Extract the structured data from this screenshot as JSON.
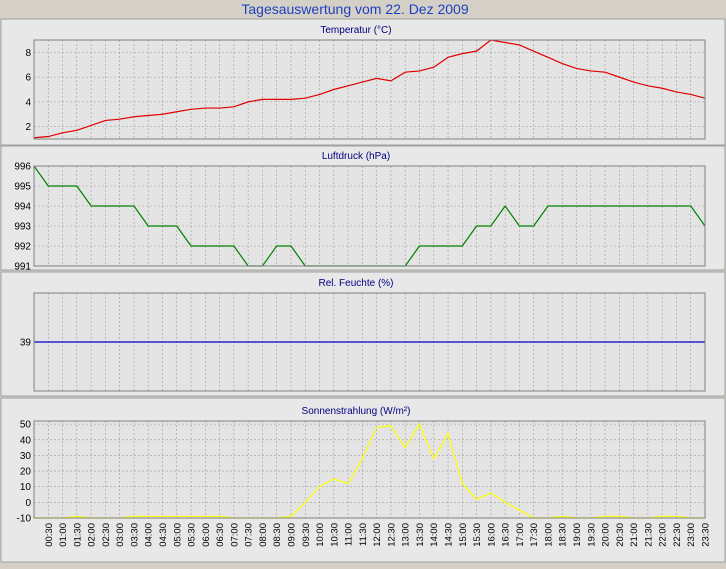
{
  "page_title": "Tagesauswertung vom 22. Dez 2009",
  "colors": {
    "background": "#d4d0c8",
    "title": "#1f3fbf",
    "panel": "#e8e8e8",
    "plot": "#e4e4e4",
    "grid": "#9a9a9a"
  },
  "time_labels": [
    "00:30",
    "01:00",
    "01:30",
    "02:00",
    "02:30",
    "03:00",
    "03:30",
    "04:00",
    "04:30",
    "05:00",
    "05:30",
    "06:00",
    "06:30",
    "07:00",
    "07:30",
    "08:00",
    "08:30",
    "09:00",
    "09:30",
    "10:00",
    "10:30",
    "11:00",
    "11:30",
    "12:00",
    "12:30",
    "13:00",
    "13:30",
    "14:00",
    "14:30",
    "15:00",
    "15:30",
    "16:00",
    "16:30",
    "17:00",
    "17:30",
    "18:00",
    "18:30",
    "19:00",
    "19:30",
    "20:00",
    "20:30",
    "21:00",
    "21:30",
    "22:00",
    "22:30",
    "23:00",
    "23:30"
  ],
  "chart_data": [
    {
      "type": "line",
      "title": "Temperatur (°C)",
      "ylim": [
        1,
        9
      ],
      "yticks": [
        2,
        4,
        6,
        8
      ],
      "grid": true,
      "color": "#e00000",
      "x": [
        0,
        0.5,
        1,
        1.5,
        2,
        2.5,
        3,
        3.5,
        4,
        4.5,
        5,
        5.5,
        6,
        6.5,
        7,
        7.5,
        8,
        8.5,
        9,
        9.5,
        10,
        10.5,
        11,
        11.5,
        12,
        12.5,
        13,
        13.5,
        14,
        14.5,
        15,
        15.5,
        16,
        16.5,
        17,
        17.5,
        18,
        18.5,
        19,
        19.5,
        20,
        20.5,
        21,
        21.5,
        22,
        22.5,
        23,
        23.5
      ],
      "values": [
        1.1,
        1.2,
        1.5,
        1.7,
        2.1,
        2.5,
        2.6,
        2.8,
        2.9,
        3.0,
        3.2,
        3.4,
        3.5,
        3.5,
        3.6,
        4.0,
        4.2,
        4.2,
        4.2,
        4.3,
        4.6,
        5.0,
        5.3,
        5.6,
        5.9,
        5.7,
        6.4,
        6.5,
        6.8,
        7.6,
        7.9,
        8.1,
        9.0,
        8.8,
        8.6,
        8.1,
        7.6,
        7.1,
        6.7,
        6.5,
        6.4,
        6.0,
        5.6,
        5.3,
        5.1,
        4.8,
        4.6,
        4.3
      ]
    },
    {
      "type": "line",
      "title": "Luftdruck (hPa)",
      "ylim": [
        991,
        996
      ],
      "yticks": [
        991,
        992,
        993,
        994,
        995,
        996
      ],
      "grid": true,
      "color": "#008000",
      "x": [
        0,
        0.5,
        1,
        1.5,
        2,
        2.5,
        3,
        3.5,
        4,
        4.5,
        5,
        5.5,
        6,
        6.5,
        7,
        7.5,
        8,
        8.5,
        9,
        9.5,
        10,
        10.5,
        11,
        11.5,
        12,
        12.5,
        13,
        13.5,
        14,
        14.5,
        15,
        15.5,
        16,
        16.5,
        17,
        17.5,
        18,
        18.5,
        19,
        19.5,
        20,
        20.5,
        21,
        21.5,
        22,
        22.5,
        23,
        23.5
      ],
      "values": [
        996,
        995,
        995,
        995,
        994,
        994,
        994,
        994,
        993,
        993,
        993,
        992,
        992,
        992,
        992,
        991,
        991,
        992,
        992,
        991,
        991,
        991,
        991,
        991,
        991,
        991,
        991,
        992,
        992,
        992,
        992,
        993,
        993,
        994,
        993,
        993,
        994,
        994,
        994,
        994,
        994,
        994,
        994,
        994,
        994,
        994,
        994,
        993
      ]
    },
    {
      "type": "line",
      "title": "Rel. Feuchte (%)",
      "ylim": [
        35,
        43
      ],
      "yticks": [
        39
      ],
      "grid": true,
      "color": "#0000cc",
      "x": [
        0,
        23.5
      ],
      "values": [
        39,
        39
      ]
    },
    {
      "type": "line",
      "title": "Sonnenstrahlung (W/m²)",
      "ylim": [
        -10,
        52
      ],
      "yticks": [
        -10,
        0,
        10,
        20,
        30,
        40,
        50
      ],
      "grid": true,
      "color": "#ffff00",
      "x": [
        0,
        0.5,
        1,
        1.5,
        2,
        2.5,
        3,
        3.5,
        4,
        4.5,
        5,
        5.5,
        6,
        6.5,
        7,
        7.5,
        8,
        8.5,
        9,
        9.5,
        10,
        10.5,
        11,
        11.5,
        12,
        12.5,
        13,
        13.5,
        14,
        14.5,
        15,
        15.5,
        16,
        16.5,
        17,
        17.5,
        18,
        18.5,
        19,
        19.5,
        20,
        20.5,
        21,
        21.5,
        22,
        22.5,
        23,
        23.5
      ],
      "values": [
        -10,
        -10,
        -10,
        -9,
        -10,
        -10,
        -10,
        -9,
        -9,
        -9,
        -9,
        -9,
        -9,
        -9,
        -10,
        -10,
        -10,
        -10,
        -9,
        0,
        10,
        15,
        12,
        28,
        48,
        49,
        35,
        50,
        28,
        44,
        12,
        2,
        6,
        0,
        -5,
        -10,
        -10,
        -9,
        -10,
        -10,
        -9,
        -9,
        -10,
        -10,
        -9,
        -9,
        -10,
        -10
      ]
    }
  ]
}
